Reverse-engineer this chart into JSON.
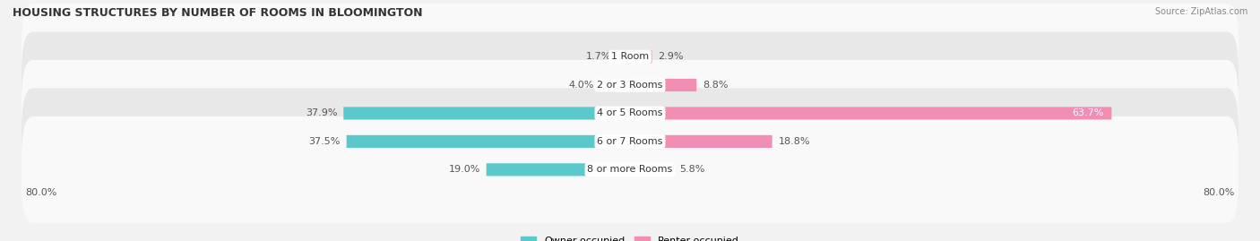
{
  "title": "HOUSING STRUCTURES BY NUMBER OF ROOMS IN BLOOMINGTON",
  "source": "Source: ZipAtlas.com",
  "categories": [
    "1 Room",
    "2 or 3 Rooms",
    "4 or 5 Rooms",
    "6 or 7 Rooms",
    "8 or more Rooms"
  ],
  "owner_values": [
    1.7,
    4.0,
    37.9,
    37.5,
    19.0
  ],
  "renter_values": [
    2.9,
    8.8,
    63.7,
    18.8,
    5.8
  ],
  "owner_color": "#5BC8CC",
  "renter_color": "#F28DB4",
  "label_color_dark": "#555555",
  "background_color": "#f2f2f2",
  "row_bg_light": "#f9f9f9",
  "row_bg_dark": "#e8e8e8",
  "x_min": -80.0,
  "x_max": 80.0,
  "x_left_label": "80.0%",
  "x_right_label": "80.0%",
  "title_fontsize": 9,
  "label_fontsize": 8,
  "value_fontsize": 8
}
